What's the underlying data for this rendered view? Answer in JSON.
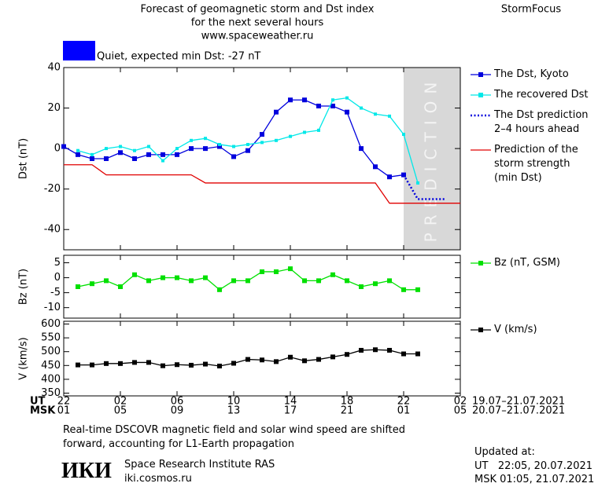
{
  "header": {
    "title_lines": [
      "Forecast of geomagnetic storm and Dst index",
      "for the next several hours",
      "www.spaceweather.ru"
    ],
    "brand": "StormFocus"
  },
  "status": {
    "text": "Quiet, expected min Dst: -27 nT",
    "color": "#0000ff"
  },
  "chart_data": [
    {
      "type": "line",
      "ylabel": "Dst (nT)",
      "xlim": [
        0,
        28
      ],
      "ylim": [
        -50,
        40
      ],
      "yticks": [
        40,
        20,
        0,
        -20,
        -40
      ],
      "prediction_zone": [
        24,
        28
      ],
      "prediction_label": "PREDICTION",
      "series": [
        {
          "name": "The Dst, Kyoto",
          "color": "#0000dd",
          "marker": "square",
          "x": [
            0,
            1,
            2,
            3,
            4,
            5,
            6,
            7,
            8,
            9,
            10,
            11,
            12,
            13,
            14,
            15,
            16,
            17,
            18,
            19,
            20,
            21,
            22,
            23,
            24
          ],
          "values": [
            1,
            -3,
            -5,
            -5,
            -2,
            -5,
            -3,
            -3,
            -3,
            0,
            0,
            1,
            -4,
            -1,
            7,
            18,
            24,
            24,
            21,
            21,
            18,
            0,
            -9,
            -14,
            -13
          ]
        },
        {
          "name": "The recovered Dst",
          "color": "#00e8e8",
          "marker": "square",
          "x": [
            1,
            2,
            3,
            4,
            5,
            6,
            7,
            8,
            9,
            10,
            11,
            12,
            13,
            14,
            15,
            16,
            17,
            18,
            19,
            20,
            21,
            22,
            23,
            24,
            25
          ],
          "values": [
            -1,
            -3,
            0,
            1,
            -1,
            1,
            -6,
            0,
            4,
            5,
            2,
            1,
            2,
            3,
            4,
            6,
            8,
            9,
            24,
            25,
            20,
            17,
            16,
            7,
            -17
          ]
        },
        {
          "name": "The Dst prediction\n2–4 hours ahead",
          "color": "#0000dd",
          "dash": "dotted",
          "x": [
            24,
            25,
            27
          ],
          "values": [
            -13,
            -25,
            -25
          ]
        },
        {
          "name": "Prediction of the\nstorm strength\n(min Dst)",
          "color": "#e00000",
          "x": [
            0,
            2,
            3,
            9,
            10,
            22,
            23,
            28
          ],
          "values": [
            -8,
            -8,
            -13,
            -13,
            -17,
            -17,
            -27,
            -27
          ]
        }
      ]
    },
    {
      "type": "line",
      "ylabel": "Bz (nT)",
      "xlim": [
        0,
        28
      ],
      "ylim": [
        -13.5,
        7.5
      ],
      "yticks": [
        5,
        0,
        -5,
        -10
      ],
      "series": [
        {
          "name": "Bz (nT, GSM)",
          "color": "#00e000",
          "marker": "square",
          "x": [
            1,
            2,
            3,
            4,
            5,
            6,
            7,
            8,
            9,
            10,
            11,
            12,
            13,
            14,
            15,
            16,
            17,
            18,
            19,
            20,
            21,
            22,
            23,
            24,
            25
          ],
          "values": [
            -3,
            -2,
            -1,
            -3,
            1,
            -1,
            0,
            0,
            -1,
            0,
            -4,
            -1,
            -1,
            2,
            2,
            3,
            -1,
            -1,
            1,
            -1,
            -3,
            -2,
            -1,
            -4,
            -4
          ]
        }
      ]
    },
    {
      "type": "line",
      "ylabel": "V (km/s)",
      "xlim": [
        0,
        28
      ],
      "ylim": [
        340,
        610
      ],
      "yticks": [
        600,
        550,
        500,
        450,
        400,
        350
      ],
      "xticks": [
        {
          "value": 0,
          "label": "22"
        },
        {
          "value": 4,
          "label": "02"
        },
        {
          "value": 8,
          "label": "06"
        },
        {
          "value": 12,
          "label": "10"
        },
        {
          "value": 16,
          "label": "14"
        },
        {
          "value": 20,
          "label": "18"
        },
        {
          "value": 24,
          "label": "22"
        },
        {
          "value": 28,
          "label": "02"
        }
      ],
      "x2ticks": [
        {
          "value": 0,
          "label": "01"
        },
        {
          "value": 4,
          "label": "05"
        },
        {
          "value": 8,
          "label": "09"
        },
        {
          "value": 12,
          "label": "13"
        },
        {
          "value": 16,
          "label": "17"
        },
        {
          "value": 20,
          "label": "21"
        },
        {
          "value": 24,
          "label": "01"
        },
        {
          "value": 28,
          "label": "05"
        }
      ],
      "series": [
        {
          "name": "V (km/s)",
          "color": "#000000",
          "marker": "square",
          "x": [
            1,
            2,
            3,
            4,
            5,
            6,
            7,
            8,
            9,
            10,
            11,
            12,
            13,
            14,
            15,
            16,
            17,
            18,
            19,
            20,
            21,
            22,
            23,
            24,
            25
          ],
          "values": [
            452,
            452,
            457,
            457,
            461,
            461,
            449,
            453,
            451,
            455,
            448,
            458,
            472,
            470,
            464,
            480,
            467,
            472,
            481,
            490,
            505,
            507,
            505,
            492,
            492
          ]
        }
      ]
    }
  ],
  "time_axis": {
    "rows": [
      {
        "label": "UT",
        "range": "19.07–21.07.2021"
      },
      {
        "label": "MSK",
        "range": "20.07–21.07.2021"
      }
    ]
  },
  "footer": {
    "note": "Real-time DSCOVR magnetic field and solar wind speed are shifted\nforward, accounting for L1-Earth propagation",
    "logo": "ИКИ",
    "institute": "Space Research Institute RAS",
    "site": "iki.cosmos.ru",
    "updated_title": "Updated at:",
    "updated_lines": [
      "UT   22:05, 20.07.2021",
      "MSK 01:05, 21.07.2021"
    ]
  }
}
